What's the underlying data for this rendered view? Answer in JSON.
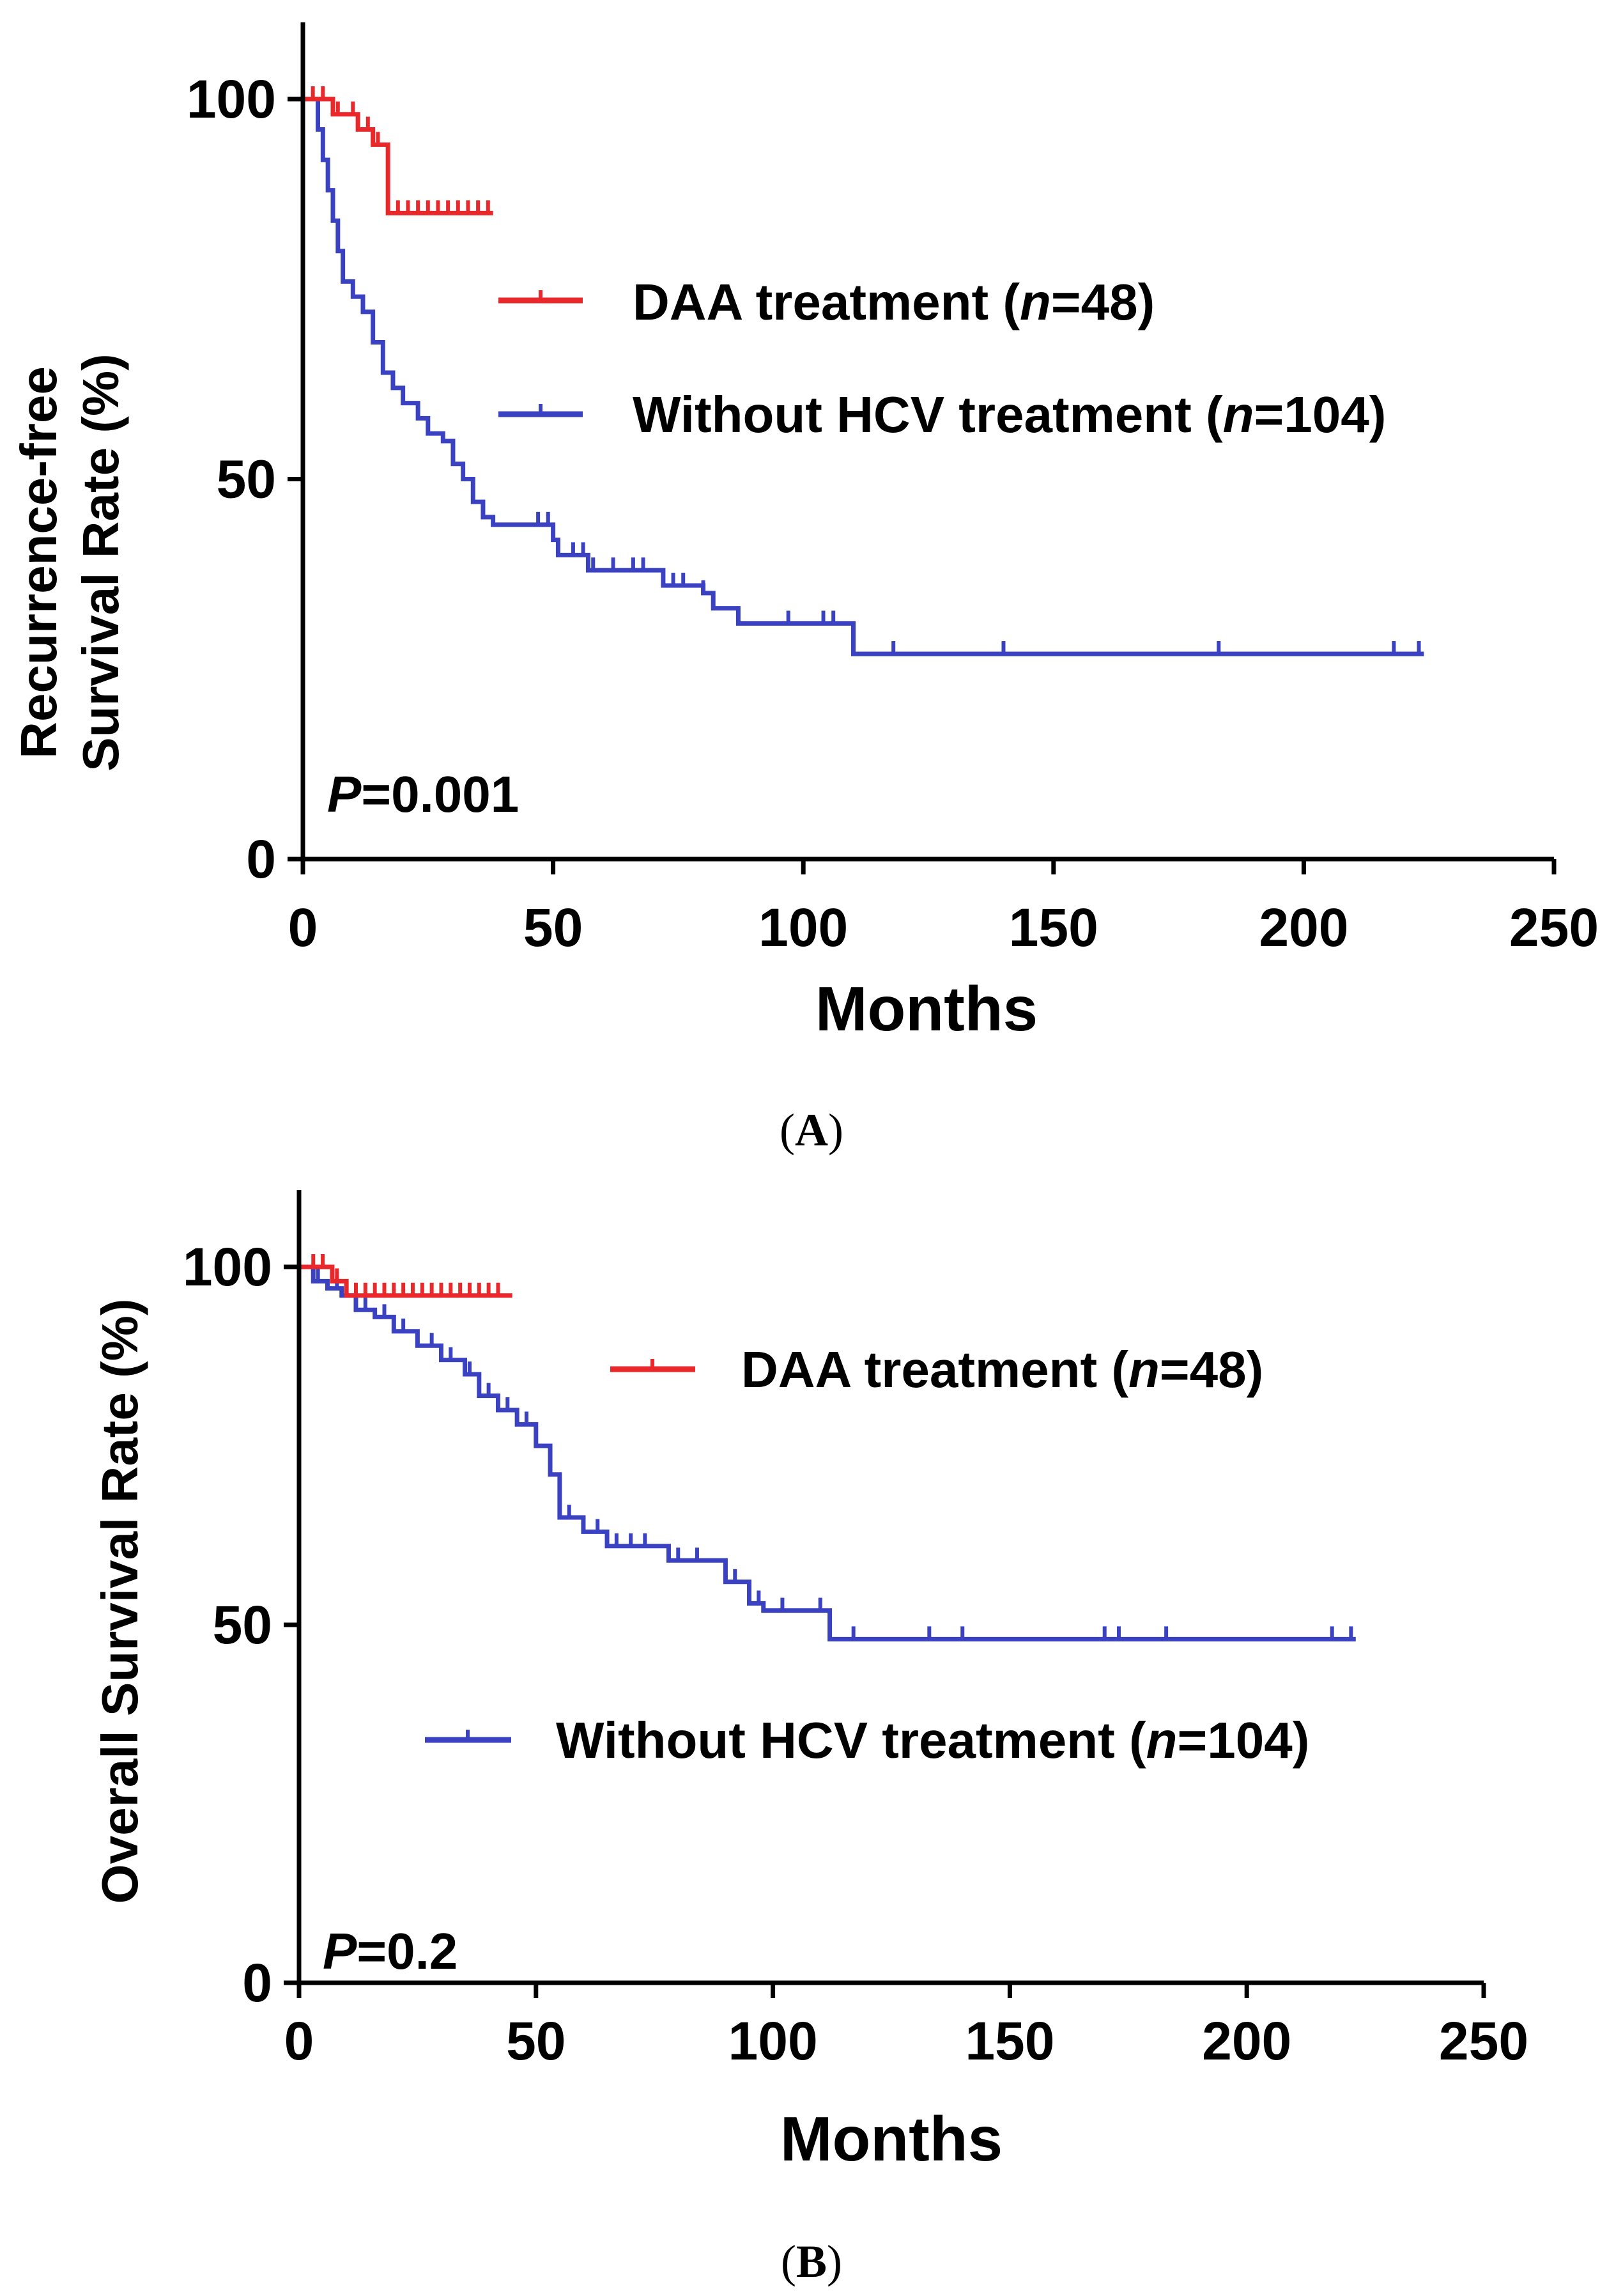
{
  "chart_data": [
    {
      "type": "line",
      "panel_label": "A",
      "xlabel": "Months",
      "ylabel_line1": "Recurrence-free",
      "ylabel_line2": "Survival Rate (%)",
      "xlim": [
        0,
        250
      ],
      "ylim": [
        0,
        110
      ],
      "xticks": [
        0,
        50,
        100,
        150,
        200,
        250
      ],
      "yticks": [
        0,
        50,
        100
      ],
      "grid": false,
      "p_symbol": "P",
      "p_value": "=0.001",
      "legend_placement": "upper-right",
      "series": [
        {
          "name": "DAA treatment",
          "legend_prefix": "DAA treatment (",
          "legend_n": "n",
          "legend_suffix": "=48)",
          "color": "#e8282a",
          "steps": [
            [
              0,
              100
            ],
            [
              5,
              100
            ],
            [
              6,
              98
            ],
            [
              9,
              98
            ],
            [
              11,
              96
            ],
            [
              13,
              96
            ],
            [
              14,
              94
            ],
            [
              16,
              94
            ],
            [
              17,
              85
            ],
            [
              38,
              85
            ]
          ],
          "censored": [
            [
              2,
              100
            ],
            [
              4,
              100
            ],
            [
              7,
              98
            ],
            [
              10,
              98
            ],
            [
              13,
              96
            ],
            [
              15,
              94
            ],
            [
              19,
              85
            ],
            [
              21,
              85
            ],
            [
              23,
              85
            ],
            [
              25,
              85
            ],
            [
              27,
              85
            ],
            [
              29,
              85
            ],
            [
              31,
              85
            ],
            [
              33,
              85
            ],
            [
              35,
              85
            ],
            [
              37,
              85
            ]
          ]
        },
        {
          "name": "Without HCV treatment",
          "legend_prefix": "Without HCV treatment (",
          "legend_n": "n",
          "legend_suffix": "=104)",
          "color": "#3a42c2",
          "steps": [
            [
              0,
              100
            ],
            [
              2,
              100
            ],
            [
              3,
              96
            ],
            [
              4,
              92
            ],
            [
              5,
              88
            ],
            [
              6,
              84
            ],
            [
              7,
              80
            ],
            [
              8,
              76
            ],
            [
              10,
              74
            ],
            [
              12,
              72
            ],
            [
              14,
              68
            ],
            [
              16,
              64
            ],
            [
              18,
              62
            ],
            [
              20,
              60
            ],
            [
              23,
              58
            ],
            [
              25,
              56
            ],
            [
              28,
              55
            ],
            [
              30,
              52
            ],
            [
              32,
              50
            ],
            [
              34,
              47
            ],
            [
              36,
              45
            ],
            [
              38,
              44
            ],
            [
              48,
              44
            ],
            [
              50,
              42
            ],
            [
              51,
              40
            ],
            [
              57,
              38
            ],
            [
              72,
              36
            ],
            [
              80,
              35
            ],
            [
              82,
              33
            ],
            [
              87,
              31
            ],
            [
              110,
              27
            ],
            [
              224,
              27
            ]
          ],
          "censored": [
            [
              47,
              44
            ],
            [
              49,
              44
            ],
            [
              54,
              40
            ],
            [
              56,
              40
            ],
            [
              58,
              38
            ],
            [
              62,
              38
            ],
            [
              66,
              38
            ],
            [
              68,
              38
            ],
            [
              74,
              36
            ],
            [
              76,
              36
            ],
            [
              80,
              35
            ],
            [
              97,
              31
            ],
            [
              104,
              31
            ],
            [
              106,
              31
            ],
            [
              118,
              27
            ],
            [
              140,
              27
            ],
            [
              183,
              27
            ],
            [
              218,
              27
            ],
            [
              223,
              27
            ]
          ]
        }
      ]
    },
    {
      "type": "line",
      "panel_label": "B",
      "xlabel": "Months",
      "ylabel": "Overall Survival Rate (%)",
      "xlim": [
        0,
        250
      ],
      "ylim": [
        0,
        110
      ],
      "xticks": [
        0,
        50,
        100,
        150,
        200,
        250
      ],
      "yticks": [
        0,
        50,
        100
      ],
      "grid": false,
      "p_symbol": "P",
      "p_value": "=0.2",
      "legend_placement": "upper-right / center",
      "series": [
        {
          "name": "DAA treatment",
          "legend_prefix": "DAA treatment (",
          "legend_n": "n",
          "legend_suffix": "=48)",
          "color": "#e8282a",
          "steps": [
            [
              0,
              100
            ],
            [
              6,
              100
            ],
            [
              7,
              98
            ],
            [
              8,
              98
            ],
            [
              10,
              96
            ],
            [
              45,
              96
            ]
          ],
          "censored": [
            [
              3,
              100
            ],
            [
              5,
              100
            ],
            [
              8,
              98
            ],
            [
              12,
              96
            ],
            [
              14,
              96
            ],
            [
              16,
              96
            ],
            [
              18,
              96
            ],
            [
              20,
              96
            ],
            [
              22,
              96
            ],
            [
              24,
              96
            ],
            [
              26,
              96
            ],
            [
              28,
              96
            ],
            [
              30,
              96
            ],
            [
              32,
              96
            ],
            [
              34,
              96
            ],
            [
              36,
              96
            ],
            [
              38,
              96
            ],
            [
              40,
              96
            ],
            [
              42,
              96
            ]
          ]
        },
        {
          "name": "Without HCV treatment",
          "legend_prefix": "Without HCV treatment (",
          "legend_n": "n",
          "legend_suffix": "=104)",
          "color": "#3a42c2",
          "steps": [
            [
              0,
              100
            ],
            [
              3,
              98
            ],
            [
              6,
              97
            ],
            [
              9,
              96
            ],
            [
              12,
              94
            ],
            [
              16,
              93
            ],
            [
              20,
              91
            ],
            [
              25,
              89
            ],
            [
              30,
              87
            ],
            [
              35,
              85
            ],
            [
              38,
              82
            ],
            [
              42,
              80
            ],
            [
              46,
              78
            ],
            [
              50,
              75
            ],
            [
              53,
              71
            ],
            [
              55,
              65
            ],
            [
              60,
              63
            ],
            [
              65,
              61
            ],
            [
              75,
              61
            ],
            [
              78,
              59
            ],
            [
              85,
              59
            ],
            [
              90,
              56
            ],
            [
              95,
              53
            ],
            [
              98,
              52
            ],
            [
              112,
              48
            ],
            [
              223,
              48
            ]
          ],
          "censored": [
            [
              4,
              98
            ],
            [
              8,
              97
            ],
            [
              14,
              94
            ],
            [
              18,
              93
            ],
            [
              22,
              91
            ],
            [
              28,
              89
            ],
            [
              32,
              87
            ],
            [
              36,
              85
            ],
            [
              40,
              82
            ],
            [
              44,
              80
            ],
            [
              48,
              78
            ],
            [
              57,
              65
            ],
            [
              63,
              63
            ],
            [
              67,
              61
            ],
            [
              70,
              61
            ],
            [
              73,
              61
            ],
            [
              80,
              59
            ],
            [
              84,
              59
            ],
            [
              92,
              56
            ],
            [
              97,
              53
            ],
            [
              102,
              52
            ],
            [
              110,
              52
            ],
            [
              117,
              48
            ],
            [
              133,
              48
            ],
            [
              140,
              48
            ],
            [
              170,
              48
            ],
            [
              173,
              48
            ],
            [
              183,
              48
            ],
            [
              218,
              48
            ],
            [
              222,
              48
            ]
          ]
        }
      ]
    }
  ]
}
